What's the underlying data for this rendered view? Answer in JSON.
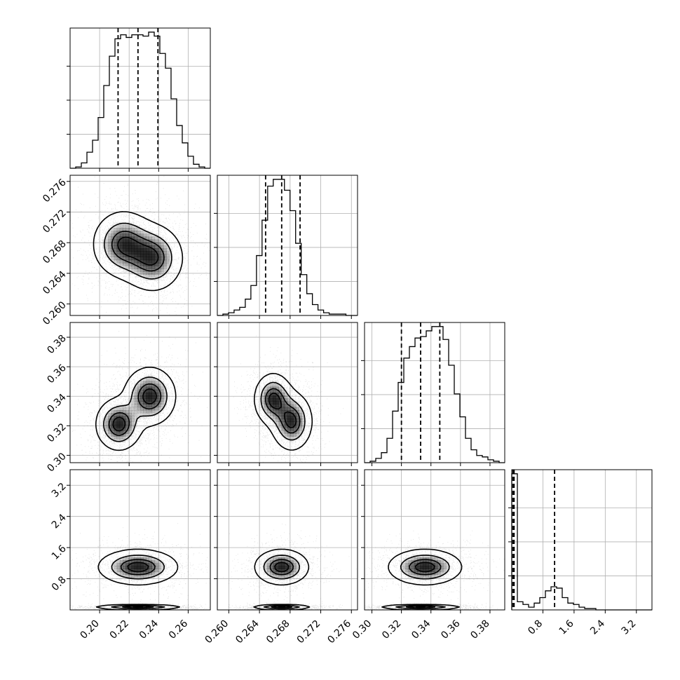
{
  "chart_data": {
    "type": "corner",
    "params": [
      {
        "range": [
          0.18,
          0.275
        ],
        "ticks": [
          0.2,
          0.22,
          0.24,
          0.26
        ],
        "tick_labels": [
          "0.20",
          "0.22",
          "0.24",
          "0.26"
        ]
      },
      {
        "range": [
          0.2585,
          0.2768
        ],
        "ticks": [
          0.26,
          0.264,
          0.268,
          0.272,
          0.276
        ],
        "tick_labels": [
          "0.260",
          "0.264",
          "0.268",
          "0.272",
          "0.276"
        ]
      },
      {
        "range": [
          0.295,
          0.39
        ],
        "ticks": [
          0.3,
          0.32,
          0.34,
          0.36,
          0.38
        ],
        "tick_labels": [
          "0.30",
          "0.32",
          "0.34",
          "0.36",
          "0.38"
        ]
      },
      {
        "range": [
          0.0,
          3.6
        ],
        "ticks": [
          0.8,
          1.6,
          2.4,
          3.2
        ],
        "tick_labels": [
          "0.8",
          "1.6",
          "2.4",
          "3.2"
        ]
      }
    ],
    "quantiles": [
      [
        0.2125,
        0.226,
        0.2395
      ],
      [
        0.2648,
        0.2669,
        0.2693
      ],
      [
        0.32,
        0.333,
        0.346
      ],
      [
        0.03,
        0.06,
        1.1
      ]
    ],
    "histograms": [
      {
        "edges_start": 0.18,
        "bin_width": 0.0038,
        "counts": [
          0.0,
          0.01,
          0.04,
          0.12,
          0.21,
          0.38,
          0.62,
          0.84,
          0.97,
          1.0,
          0.98,
          1.0,
          1.0,
          0.99,
          1.02,
          0.99,
          0.86,
          0.75,
          0.52,
          0.32,
          0.19,
          0.09,
          0.03,
          0.01,
          0.0
        ]
      },
      {
        "edges_start": 0.2585,
        "bin_width": 0.00073,
        "counts": [
          0.0,
          0.01,
          0.02,
          0.04,
          0.06,
          0.12,
          0.22,
          0.44,
          0.7,
          0.95,
          1.0,
          1.0,
          0.92,
          0.77,
          0.53,
          0.3,
          0.16,
          0.08,
          0.04,
          0.02,
          0.01,
          0.01,
          0.01,
          0.0,
          0.0
        ]
      },
      {
        "edges_start": 0.295,
        "bin_width": 0.0038,
        "counts": [
          0.0,
          0.01,
          0.03,
          0.07,
          0.17,
          0.36,
          0.56,
          0.73,
          0.81,
          0.87,
          0.88,
          0.92,
          0.95,
          0.95,
          0.86,
          0.68,
          0.48,
          0.32,
          0.17,
          0.09,
          0.05,
          0.04,
          0.02,
          0.01,
          0.0
        ]
      },
      {
        "edges_start": 0.0,
        "bin_width": 0.144,
        "counts": [
          1.0,
          0.06,
          0.04,
          0.02,
          0.05,
          0.09,
          0.14,
          0.17,
          0.16,
          0.09,
          0.05,
          0.04,
          0.02,
          0.01,
          0.01,
          0.0,
          0.0,
          0.0,
          0.0,
          0.0,
          0.0,
          0.0,
          0.0,
          0.0,
          0.0
        ]
      }
    ],
    "pairs": [
      {
        "x": 0,
        "y": 1,
        "components": [
          {
            "w": 0.5,
            "mx": 0.216,
            "my": 0.2678,
            "sx": 0.01,
            "sy": 0.0021
          },
          {
            "w": 0.5,
            "mx": 0.236,
            "my": 0.266,
            "sx": 0.01,
            "sy": 0.0021
          }
        ]
      },
      {
        "x": 0,
        "y": 2,
        "components": [
          {
            "w": 0.5,
            "mx": 0.213,
            "my": 0.321,
            "sx": 0.0075,
            "sy": 0.0085
          },
          {
            "w": 0.5,
            "mx": 0.234,
            "my": 0.34,
            "sx": 0.0085,
            "sy": 0.0095
          }
        ]
      },
      {
        "x": 1,
        "y": 2,
        "components": [
          {
            "w": 0.5,
            "mx": 0.2658,
            "my": 0.338,
            "sx": 0.0012,
            "sy": 0.0085
          },
          {
            "w": 0.5,
            "mx": 0.2682,
            "my": 0.323,
            "sx": 0.0013,
            "sy": 0.0095
          }
        ]
      },
      {
        "x": 0,
        "y": 3,
        "components": [
          {
            "w": 0.5,
            "mx": 0.226,
            "my": 0.06,
            "sx": 0.014,
            "sy": 0.03
          },
          {
            "w": 0.5,
            "mx": 0.226,
            "my": 1.1,
            "sx": 0.013,
            "sy": 0.22
          }
        ]
      },
      {
        "x": 1,
        "y": 3,
        "components": [
          {
            "w": 0.5,
            "mx": 0.2669,
            "my": 0.06,
            "sx": 0.0018,
            "sy": 0.03
          },
          {
            "w": 0.5,
            "mx": 0.2669,
            "my": 1.1,
            "sx": 0.0017,
            "sy": 0.22
          }
        ]
      },
      {
        "x": 2,
        "y": 3,
        "components": [
          {
            "w": 0.5,
            "mx": 0.333,
            "my": 0.06,
            "sx": 0.013,
            "sy": 0.03
          },
          {
            "w": 0.5,
            "mx": 0.336,
            "my": 1.1,
            "sx": 0.012,
            "sy": 0.22
          }
        ]
      }
    ],
    "grid": true
  }
}
